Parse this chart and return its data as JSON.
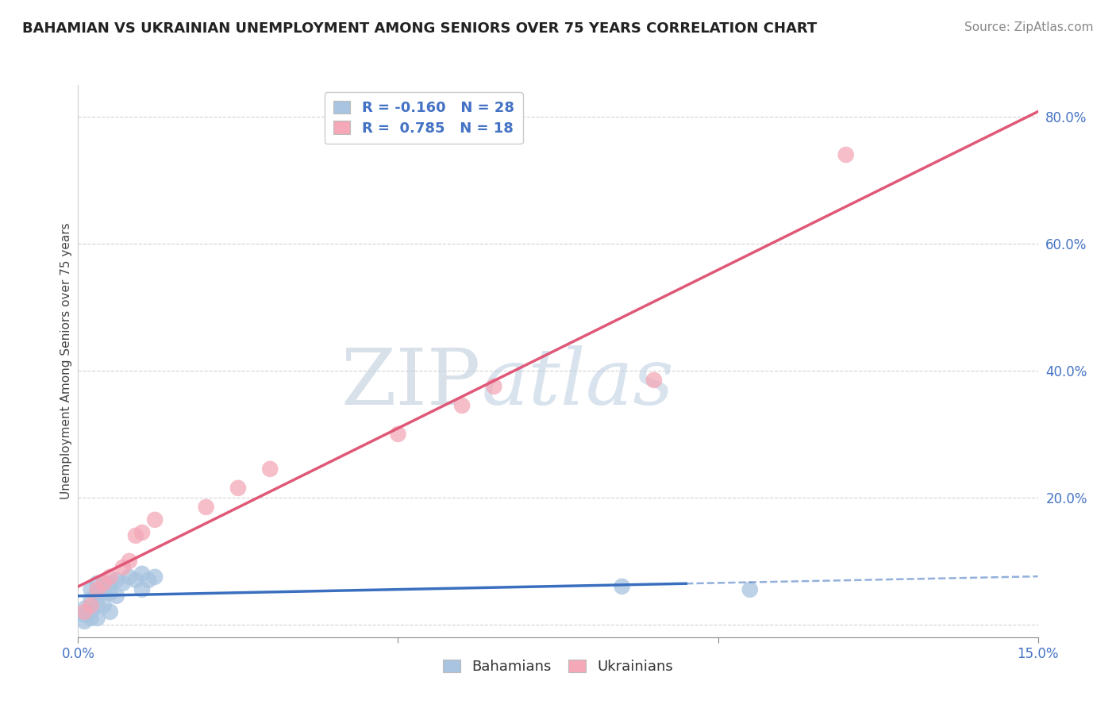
{
  "title": "BAHAMIAN VS UKRAINIAN UNEMPLOYMENT AMONG SENIORS OVER 75 YEARS CORRELATION CHART",
  "source": "Source: ZipAtlas.com",
  "ylabel": "Unemployment Among Seniors over 75 years",
  "xlim": [
    0.0,
    0.15
  ],
  "ylim": [
    -0.02,
    0.85
  ],
  "xticks": [
    0.0,
    0.05,
    0.1,
    0.15
  ],
  "xticklabels": [
    "0.0%",
    "",
    "",
    "15.0%"
  ],
  "yticks": [
    0.0,
    0.2,
    0.4,
    0.6,
    0.8
  ],
  "yticklabels": [
    "",
    "20.0%",
    "40.0%",
    "60.0%",
    "80.0%"
  ],
  "bahamian_x": [
    0.001,
    0.001,
    0.001,
    0.002,
    0.002,
    0.002,
    0.002,
    0.003,
    0.003,
    0.003,
    0.003,
    0.004,
    0.004,
    0.004,
    0.005,
    0.005,
    0.005,
    0.006,
    0.006,
    0.007,
    0.008,
    0.009,
    0.01,
    0.01,
    0.011,
    0.012,
    0.085,
    0.105
  ],
  "bahamian_y": [
    0.025,
    0.015,
    0.005,
    0.055,
    0.04,
    0.02,
    0.01,
    0.065,
    0.05,
    0.03,
    0.01,
    0.065,
    0.05,
    0.03,
    0.065,
    0.05,
    0.02,
    0.07,
    0.045,
    0.065,
    0.075,
    0.07,
    0.08,
    0.055,
    0.07,
    0.075,
    0.06,
    0.055
  ],
  "ukrainian_x": [
    0.001,
    0.002,
    0.003,
    0.004,
    0.005,
    0.007,
    0.008,
    0.009,
    0.01,
    0.012,
    0.02,
    0.025,
    0.03,
    0.05,
    0.06,
    0.065,
    0.09,
    0.12
  ],
  "ukrainian_y": [
    0.02,
    0.03,
    0.055,
    0.065,
    0.075,
    0.09,
    0.1,
    0.14,
    0.145,
    0.165,
    0.185,
    0.215,
    0.245,
    0.3,
    0.345,
    0.375,
    0.385,
    0.74
  ],
  "R_bahamian": -0.16,
  "N_bahamian": 28,
  "R_ukrainian": 0.785,
  "N_ukrainian": 18,
  "bahamian_color": "#a8c4e0",
  "ukrainian_color": "#f4a8b8",
  "bahamian_line_color": "#3a6fbf",
  "ukrainian_line_color": "#e05878",
  "watermark_zip": "ZIP",
  "watermark_atlas": "atlas",
  "background_color": "#ffffff",
  "grid_color": "#c8c8c8",
  "title_fontsize": 13,
  "source_fontsize": 11,
  "tick_fontsize": 12,
  "ylabel_fontsize": 11
}
